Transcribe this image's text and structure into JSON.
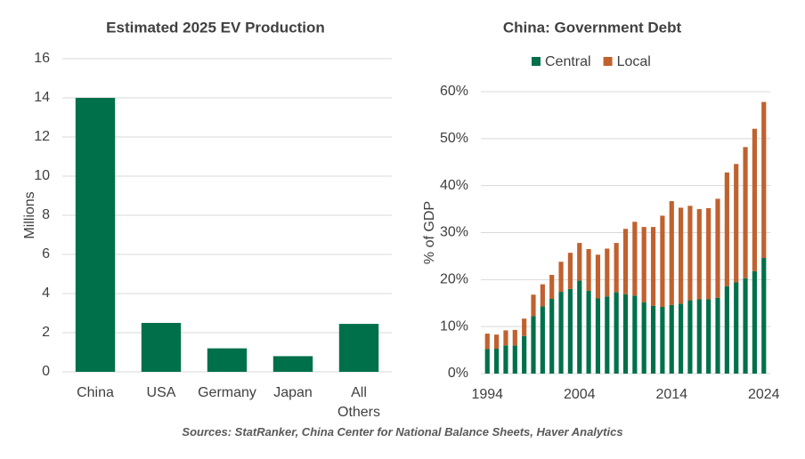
{
  "chart_data": [
    {
      "type": "bar",
      "title": "Estimated 2025 EV Production",
      "y_label": "Millions",
      "categories": [
        "China",
        "USA",
        "Germany",
        "Japan",
        "All Others"
      ],
      "values": [
        14,
        2.5,
        1.2,
        0.8,
        2.45
      ],
      "color": "#00704a",
      "ylim": [
        0,
        16
      ],
      "yticks": [
        0,
        2,
        4,
        6,
        8,
        10,
        12,
        14,
        16
      ],
      "grid": true
    },
    {
      "type": "stacked_bar",
      "title": "China: Government Debt",
      "y_label": "% of GDP",
      "x": [
        1994,
        1995,
        1996,
        1997,
        1998,
        1999,
        2000,
        2001,
        2002,
        2003,
        2004,
        2005,
        2006,
        2007,
        2008,
        2009,
        2010,
        2011,
        2012,
        2013,
        2014,
        2015,
        2016,
        2017,
        2018,
        2019,
        2020,
        2021,
        2022,
        2023,
        2024
      ],
      "series": [
        {
          "name": "Central",
          "color": "#00704a",
          "values": [
            5.2,
            5.3,
            6.0,
            6.0,
            8.0,
            12.2,
            14.3,
            15.9,
            17.4,
            18.0,
            19.8,
            17.6,
            16.0,
            16.4,
            17.3,
            16.9,
            16.6,
            15.2,
            14.4,
            14.2,
            14.6,
            14.9,
            15.6,
            15.8,
            15.8,
            16.1,
            18.6,
            19.4,
            20.3,
            21.8,
            24.6
          ]
        },
        {
          "name": "Local",
          "color": "#c0612f",
          "values": [
            3.3,
            3.0,
            3.2,
            3.3,
            3.7,
            4.6,
            4.7,
            5.1,
            6.4,
            7.7,
            8.0,
            8.9,
            9.3,
            10.2,
            10.5,
            13.9,
            15.7,
            16.0,
            16.8,
            19.4,
            22.1,
            20.4,
            20.1,
            19.2,
            19.4,
            21.1,
            24.2,
            25.2,
            27.9,
            30.3,
            33.2
          ]
        }
      ],
      "xlim": [
        1993.3,
        2024.7
      ],
      "xticks": [
        1994,
        2004,
        2014,
        2024
      ],
      "ylim": [
        0,
        60
      ],
      "yticks": [
        {
          "value": 0,
          "label": "0%"
        },
        {
          "value": 10,
          "label": "10%"
        },
        {
          "value": 20,
          "label": "20%"
        },
        {
          "value": 30,
          "label": "30%"
        },
        {
          "value": 40,
          "label": "40%"
        },
        {
          "value": 50,
          "label": "50%"
        },
        {
          "value": 60,
          "label": "60%"
        }
      ],
      "grid": true,
      "legend": "top"
    }
  ],
  "source": "Sources: StatRanker, China Center for National Balance Sheets, Haver Analytics"
}
